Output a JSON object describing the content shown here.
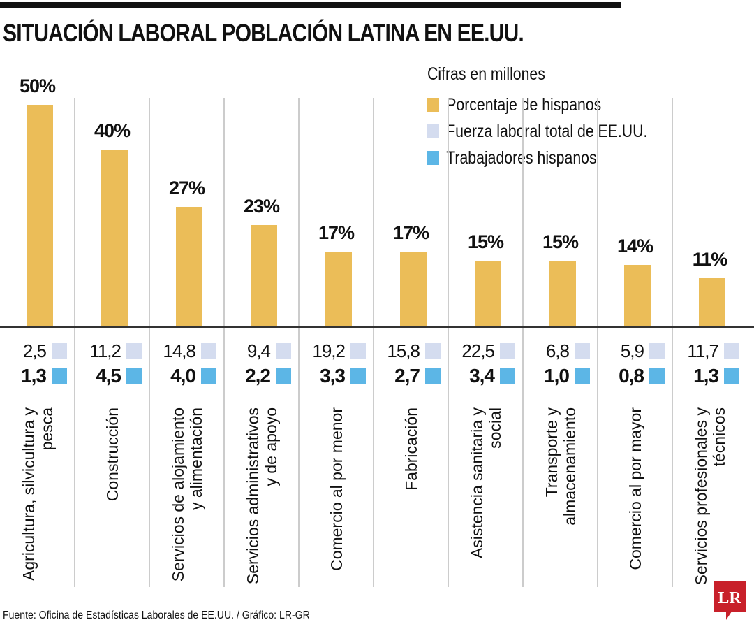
{
  "title": "SITUACIÓN LABORAL POBLACIÓN LATINA EN EE.UU.",
  "source": "Fuente: Oficina de Estadísticas Laborales de EE.UU. / Gráfico: LR-GR",
  "logo": "LR",
  "legend": {
    "note": "Cifras en millones",
    "items": [
      "Porcentaje de hispanos",
      "Fuerza laboral total de EE.UU.",
      "Trabajadores hispanos"
    ]
  },
  "colors": {
    "pct": "#ebbd58",
    "total": "#d4dcef",
    "hisp": "#5cb6e6",
    "logo": "#c8202a"
  },
  "chart_data": {
    "type": "bar",
    "title": "SITUACIÓN LABORAL POBLACIÓN LATINA EN EE.UU.",
    "ylim": [
      0,
      50
    ],
    "grid": false,
    "legend_position": "top-right",
    "categories": [
      "Agricultura, silvicultura y pesca",
      "Construcción",
      "Servicios de alojamiento y alimentación",
      "Servicios administrativos y de apoyo",
      "Comercio al por menor",
      "Fabricación",
      "Asistencia sanitaria y social",
      "Transporte y almacenamiento",
      "Comercio al por mayor",
      "Servicios profesionales y técnicos"
    ],
    "pct_labels": [
      "50%",
      "40%",
      "27%",
      "23%",
      "17%",
      "17%",
      "15%",
      "15%",
      "14%",
      "11%"
    ],
    "series": [
      {
        "name": "Porcentaje de hispanos",
        "values": [
          50,
          40,
          27,
          23,
          17,
          17,
          15,
          15,
          14,
          11
        ]
      },
      {
        "name": "Fuerza laboral total de EE.UU.",
        "values": [
          2.5,
          11.2,
          14.8,
          9.4,
          19.2,
          15.8,
          22.5,
          6.8,
          5.9,
          11.7
        ],
        "labels": [
          "2,5",
          "11,2",
          "14,8",
          "9,4",
          "19,2",
          "15,8",
          "22,5",
          "6,8",
          "5,9",
          "11,7"
        ]
      },
      {
        "name": "Trabajadores hispanos",
        "values": [
          1.3,
          4.5,
          4.0,
          2.2,
          3.3,
          2.7,
          3.4,
          1.0,
          0.8,
          1.3
        ],
        "labels": [
          "1,3",
          "4,5",
          "4,0",
          "2,2",
          "3,3",
          "2,7",
          "3,4",
          "1,0",
          "0,8",
          "1,3"
        ]
      }
    ]
  }
}
